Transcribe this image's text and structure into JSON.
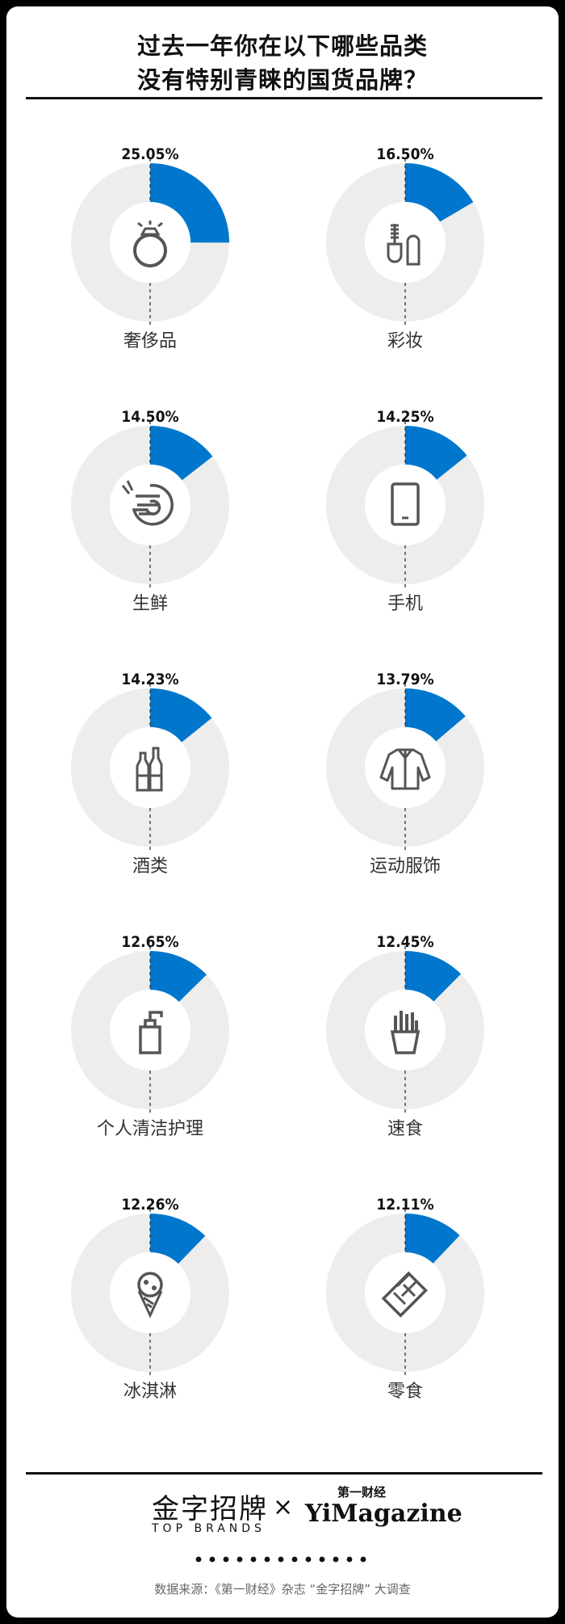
{
  "title": {
    "line1": "过去一年你在以下哪些品类",
    "line2": "没有特别青睐的国货品牌？"
  },
  "colors": {
    "accent": "#0077CC",
    "ring": "#EDEDED",
    "icon": "#555555"
  },
  "chart_data": {
    "type": "pie",
    "style": "donut",
    "items": [
      {
        "label": "奢侈品",
        "value": 25.05,
        "value_label": "25.05%",
        "icon": "ring-icon"
      },
      {
        "label": "彩妆",
        "value": 16.5,
        "value_label": "16.50%",
        "icon": "makeup-icon"
      },
      {
        "label": "生鲜",
        "value": 14.5,
        "value_label": "14.50%",
        "icon": "shrimp-icon"
      },
      {
        "label": "手机",
        "value": 14.25,
        "value_label": "14.25%",
        "icon": "phone-icon"
      },
      {
        "label": "酒类",
        "value": 14.23,
        "value_label": "14.23%",
        "icon": "bottles-icon"
      },
      {
        "label": "运动服饰",
        "value": 13.79,
        "value_label": "13.79%",
        "icon": "jacket-icon"
      },
      {
        "label": "个人清洁护理",
        "value": 12.65,
        "value_label": "12.65%",
        "icon": "pump-bottle-icon"
      },
      {
        "label": "速食",
        "value": 12.45,
        "value_label": "12.45%",
        "icon": "fries-icon"
      },
      {
        "label": "冰淇淋",
        "value": 12.26,
        "value_label": "12.26%",
        "icon": "ice-cream-icon"
      },
      {
        "label": "零食",
        "value": 12.11,
        "value_label": "12.11%",
        "icon": "chocolate-icon"
      }
    ]
  },
  "footer": {
    "brand_cn": "金字招牌",
    "brand_en": "TOP BRANDS",
    "times": "×",
    "partner_top": "第一财经",
    "partner_main": "YiMagazine",
    "source": "数据来源：《第一财经》杂志 “金字招牌” 大调查"
  }
}
